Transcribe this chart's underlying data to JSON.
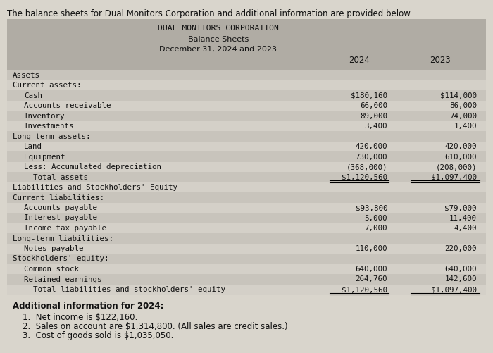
{
  "intro_text": "The balance sheets for Dual Monitors Corporation and additional information are provided below.",
  "company_name": "DUAL MONITORS CORPORATION",
  "subtitle1": "Balance Sheets",
  "subtitle2": "December 31, 2024 and 2023",
  "col_headers": [
    "2024",
    "2023"
  ],
  "rows": [
    {
      "label": "Assets",
      "val2024": "",
      "val2023": "",
      "indent": 0,
      "underline": false
    },
    {
      "label": "Current assets:",
      "val2024": "",
      "val2023": "",
      "indent": 0,
      "underline": false
    },
    {
      "label": "Cash",
      "val2024": "$180,160",
      "val2023": "$114,000",
      "indent": 1,
      "underline": false
    },
    {
      "label": "Accounts receivable",
      "val2024": "66,000",
      "val2023": "86,000",
      "indent": 1,
      "underline": false
    },
    {
      "label": "Inventory",
      "val2024": "89,000",
      "val2023": "74,000",
      "indent": 1,
      "underline": false
    },
    {
      "label": "Investments",
      "val2024": "3,400",
      "val2023": "1,400",
      "indent": 1,
      "underline": false
    },
    {
      "label": "Long-term assets:",
      "val2024": "",
      "val2023": "",
      "indent": 0,
      "underline": false
    },
    {
      "label": "Land",
      "val2024": "420,000",
      "val2023": "420,000",
      "indent": 1,
      "underline": false
    },
    {
      "label": "Equipment",
      "val2024": "730,000",
      "val2023": "610,000",
      "indent": 1,
      "underline": false
    },
    {
      "label": "Less: Accumulated depreciation",
      "val2024": "(368,000)",
      "val2023": "(208,000)",
      "indent": 1,
      "underline": false
    },
    {
      "label": "  Total assets",
      "val2024": "$1,120,560",
      "val2023": "$1,097,400",
      "indent": 1,
      "underline": true
    },
    {
      "label": "Liabilities and Stockholders' Equity",
      "val2024": "",
      "val2023": "",
      "indent": 0,
      "underline": false
    },
    {
      "label": "Current liabilities:",
      "val2024": "",
      "val2023": "",
      "indent": 0,
      "underline": false
    },
    {
      "label": "Accounts payable",
      "val2024": "$93,800",
      "val2023": "$79,000",
      "indent": 1,
      "underline": false
    },
    {
      "label": "Interest payable",
      "val2024": "5,000",
      "val2023": "11,400",
      "indent": 1,
      "underline": false
    },
    {
      "label": "Income tax payable",
      "val2024": "7,000",
      "val2023": "4,400",
      "indent": 1,
      "underline": false
    },
    {
      "label": "Long-term liabilities:",
      "val2024": "",
      "val2023": "",
      "indent": 0,
      "underline": false
    },
    {
      "label": "Notes payable",
      "val2024": "110,000",
      "val2023": "220,000",
      "indent": 1,
      "underline": false
    },
    {
      "label": "Stockholders' equity:",
      "val2024": "",
      "val2023": "",
      "indent": 0,
      "underline": false
    },
    {
      "label": "Common stock",
      "val2024": "640,000",
      "val2023": "640,000",
      "indent": 1,
      "underline": false
    },
    {
      "label": "Retained earnings",
      "val2024": "264,760",
      "val2023": "142,600",
      "indent": 1,
      "underline": false
    },
    {
      "label": "  Total liabilities and stockholders' equity",
      "val2024": "$1,120,560",
      "val2023": "$1,097,400",
      "indent": 1,
      "underline": true
    }
  ],
  "additional_info_title": "Additional information for 2024:",
  "additional_info": [
    "1.  Net income is $122,160.",
    "2.  Sales on account are $1,314,800. (All sales are credit sales.)",
    "3.  Cost of goods sold is $1,035,050."
  ],
  "bg_color": "#d9d5cc",
  "header_bg": "#b0aca4",
  "row_even_bg": "#c8c4bc",
  "row_odd_bg": "#d4d0c8",
  "text_color": "#111111"
}
